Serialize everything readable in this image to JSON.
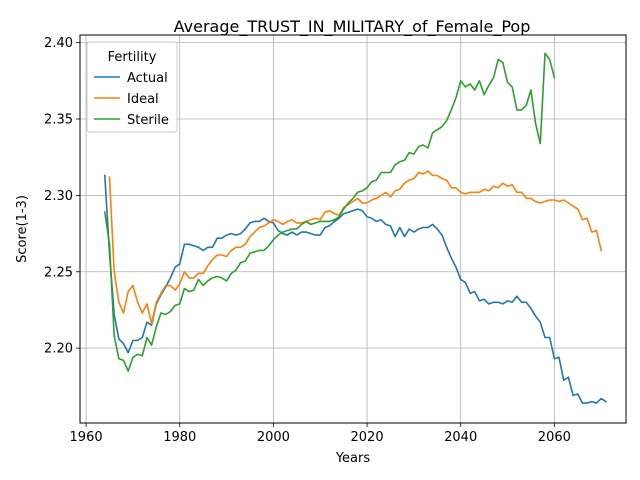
{
  "chart_data": {
    "type": "line",
    "title": "Average_TRUST_IN_MILITARY_of_Female_Pop",
    "xlabel": "Years",
    "ylabel": "Score(1-3)",
    "xlim": [
      1958.7,
      2075.3
    ],
    "ylim": [
      2.151,
      2.405
    ],
    "xticks": [
      "1960",
      "1980",
      "2000",
      "2020",
      "2040",
      "2060"
    ],
    "yticks": [
      "2.20",
      "2.25",
      "2.30",
      "2.35",
      "2.40"
    ],
    "grid": true,
    "legend": {
      "title": "Fertility",
      "placement": "upper-left"
    },
    "series": [
      {
        "name": "Actual",
        "color": "#1f77b4",
        "points": [
          [
            1964,
            2.313
          ],
          [
            1965,
            2.262
          ],
          [
            1966,
            2.222
          ],
          [
            1967,
            2.206
          ],
          [
            1968,
            2.203
          ],
          [
            1969,
            2.197
          ],
          [
            1970,
            2.205
          ],
          [
            1971,
            2.205
          ],
          [
            1972,
            2.207
          ],
          [
            1973,
            2.217
          ],
          [
            1974,
            2.215
          ],
          [
            1975,
            2.229
          ],
          [
            1976,
            2.235
          ],
          [
            1977,
            2.24
          ],
          [
            1978,
            2.246
          ],
          [
            1979,
            2.253
          ],
          [
            1980,
            2.255
          ],
          [
            1981,
            2.268
          ],
          [
            1982,
            2.268
          ],
          [
            1983,
            2.267
          ],
          [
            1984,
            2.266
          ],
          [
            1985,
            2.264
          ],
          [
            1986,
            2.266
          ],
          [
            1987,
            2.266
          ],
          [
            1988,
            2.272
          ],
          [
            1989,
            2.272
          ],
          [
            1990,
            2.274
          ],
          [
            1991,
            2.275
          ],
          [
            1992,
            2.274
          ],
          [
            1993,
            2.275
          ],
          [
            1994,
            2.278
          ],
          [
            1995,
            2.282
          ],
          [
            1996,
            2.283
          ],
          [
            1997,
            2.283
          ],
          [
            1998,
            2.285
          ],
          [
            1999,
            2.283
          ],
          [
            2000,
            2.282
          ],
          [
            2001,
            2.277
          ],
          [
            2002,
            2.275
          ],
          [
            2003,
            2.274
          ],
          [
            2004,
            2.276
          ],
          [
            2005,
            2.274
          ],
          [
            2006,
            2.276
          ],
          [
            2007,
            2.276
          ],
          [
            2008,
            2.275
          ],
          [
            2009,
            2.274
          ],
          [
            2010,
            2.274
          ],
          [
            2011,
            2.279
          ],
          [
            2012,
            2.28
          ],
          [
            2013,
            2.283
          ],
          [
            2014,
            2.285
          ],
          [
            2015,
            2.288
          ],
          [
            2016,
            2.289
          ],
          [
            2017,
            2.29
          ],
          [
            2018,
            2.291
          ],
          [
            2019,
            2.29
          ],
          [
            2020,
            2.286
          ],
          [
            2021,
            2.285
          ],
          [
            2022,
            2.283
          ],
          [
            2023,
            2.284
          ],
          [
            2024,
            2.281
          ],
          [
            2025,
            2.28
          ],
          [
            2026,
            2.273
          ],
          [
            2027,
            2.279
          ],
          [
            2028,
            2.273
          ],
          [
            2029,
            2.278
          ],
          [
            2030,
            2.276
          ],
          [
            2031,
            2.278
          ],
          [
            2032,
            2.279
          ],
          [
            2033,
            2.279
          ],
          [
            2034,
            2.281
          ],
          [
            2035,
            2.278
          ],
          [
            2036,
            2.274
          ],
          [
            2037,
            2.266
          ],
          [
            2038,
            2.259
          ],
          [
            2039,
            2.253
          ],
          [
            2040,
            2.245
          ],
          [
            2041,
            2.243
          ],
          [
            2042,
            2.236
          ],
          [
            2043,
            2.237
          ],
          [
            2044,
            2.231
          ],
          [
            2045,
            2.232
          ],
          [
            2046,
            2.229
          ],
          [
            2047,
            2.23
          ],
          [
            2048,
            2.23
          ],
          [
            2049,
            2.229
          ],
          [
            2050,
            2.231
          ],
          [
            2051,
            2.23
          ],
          [
            2052,
            2.234
          ],
          [
            2053,
            2.23
          ],
          [
            2054,
            2.23
          ],
          [
            2055,
            2.226
          ],
          [
            2056,
            2.221
          ],
          [
            2057,
            2.217
          ],
          [
            2058,
            2.207
          ],
          [
            2059,
            2.207
          ],
          [
            2060,
            2.193
          ],
          [
            2061,
            2.194
          ],
          [
            2062,
            2.179
          ],
          [
            2063,
            2.181
          ],
          [
            2064,
            2.169
          ],
          [
            2065,
            2.17
          ],
          [
            2066,
            2.164
          ],
          [
            2067,
            2.164
          ],
          [
            2068,
            2.165
          ],
          [
            2069,
            2.164
          ],
          [
            2070,
            2.167
          ],
          [
            2071,
            2.165
          ]
        ]
      },
      {
        "name": "Ideal",
        "color": "#ff7f0e",
        "points": [
          [
            1965,
            2.312
          ],
          [
            1966,
            2.25
          ],
          [
            1967,
            2.23
          ],
          [
            1968,
            2.223
          ],
          [
            1969,
            2.237
          ],
          [
            1970,
            2.241
          ],
          [
            1971,
            2.23
          ],
          [
            1972,
            2.223
          ],
          [
            1973,
            2.229
          ],
          [
            1974,
            2.216
          ],
          [
            1975,
            2.23
          ],
          [
            1976,
            2.236
          ],
          [
            1977,
            2.241
          ],
          [
            1978,
            2.241
          ],
          [
            1979,
            2.238
          ],
          [
            1980,
            2.242
          ],
          [
            1981,
            2.25
          ],
          [
            1982,
            2.246
          ],
          [
            1983,
            2.246
          ],
          [
            1984,
            2.249
          ],
          [
            1985,
            2.249
          ],
          [
            1986,
            2.254
          ],
          [
            1987,
            2.258
          ],
          [
            1988,
            2.261
          ],
          [
            1989,
            2.261
          ],
          [
            1990,
            2.26
          ],
          [
            1991,
            2.264
          ],
          [
            1992,
            2.266
          ],
          [
            1993,
            2.266
          ],
          [
            1994,
            2.268
          ],
          [
            1995,
            2.273
          ],
          [
            1996,
            2.276
          ],
          [
            1997,
            2.279
          ],
          [
            1998,
            2.28
          ],
          [
            1999,
            2.282
          ],
          [
            2000,
            2.284
          ],
          [
            2001,
            2.283
          ],
          [
            2002,
            2.281
          ],
          [
            2003,
            2.283
          ],
          [
            2004,
            2.284
          ],
          [
            2005,
            2.282
          ],
          [
            2006,
            2.282
          ],
          [
            2007,
            2.283
          ],
          [
            2008,
            2.284
          ],
          [
            2009,
            2.285
          ],
          [
            2010,
            2.284
          ],
          [
            2011,
            2.289
          ],
          [
            2012,
            2.29
          ],
          [
            2013,
            2.288
          ],
          [
            2014,
            2.287
          ],
          [
            2015,
            2.292
          ],
          [
            2016,
            2.294
          ],
          [
            2017,
            2.296
          ],
          [
            2018,
            2.298
          ],
          [
            2019,
            2.295
          ],
          [
            2020,
            2.295
          ],
          [
            2021,
            2.297
          ],
          [
            2022,
            2.298
          ],
          [
            2023,
            2.3
          ],
          [
            2024,
            2.302
          ],
          [
            2025,
            2.299
          ],
          [
            2026,
            2.303
          ],
          [
            2027,
            2.304
          ],
          [
            2028,
            2.308
          ],
          [
            2029,
            2.31
          ],
          [
            2030,
            2.311
          ],
          [
            2031,
            2.315
          ],
          [
            2032,
            2.314
          ],
          [
            2033,
            2.316
          ],
          [
            2034,
            2.313
          ],
          [
            2035,
            2.313
          ],
          [
            2036,
            2.311
          ],
          [
            2037,
            2.31
          ],
          [
            2038,
            2.305
          ],
          [
            2039,
            2.305
          ],
          [
            2040,
            2.302
          ],
          [
            2041,
            2.301
          ],
          [
            2042,
            2.302
          ],
          [
            2043,
            2.302
          ],
          [
            2044,
            2.302
          ],
          [
            2045,
            2.304
          ],
          [
            2046,
            2.303
          ],
          [
            2047,
            2.306
          ],
          [
            2048,
            2.305
          ],
          [
            2049,
            2.308
          ],
          [
            2050,
            2.306
          ],
          [
            2051,
            2.307
          ],
          [
            2052,
            2.302
          ],
          [
            2053,
            2.302
          ],
          [
            2054,
            2.298
          ],
          [
            2055,
            2.298
          ],
          [
            2056,
            2.296
          ],
          [
            2057,
            2.295
          ],
          [
            2058,
            2.296
          ],
          [
            2059,
            2.297
          ],
          [
            2060,
            2.297
          ],
          [
            2061,
            2.296
          ],
          [
            2062,
            2.297
          ],
          [
            2063,
            2.295
          ],
          [
            2064,
            2.293
          ],
          [
            2065,
            2.291
          ],
          [
            2066,
            2.284
          ],
          [
            2067,
            2.285
          ],
          [
            2068,
            2.276
          ],
          [
            2069,
            2.277
          ],
          [
            2070,
            2.264
          ]
        ]
      },
      {
        "name": "Sterile",
        "color": "#2ca02c",
        "points": [
          [
            1964,
            2.289
          ],
          [
            1965,
            2.268
          ],
          [
            1966,
            2.208
          ],
          [
            1967,
            2.193
          ],
          [
            1968,
            2.192
          ],
          [
            1969,
            2.185
          ],
          [
            1970,
            2.194
          ],
          [
            1971,
            2.196
          ],
          [
            1972,
            2.195
          ],
          [
            1973,
            2.207
          ],
          [
            1974,
            2.202
          ],
          [
            1975,
            2.214
          ],
          [
            1976,
            2.223
          ],
          [
            1977,
            2.222
          ],
          [
            1978,
            2.224
          ],
          [
            1979,
            2.228
          ],
          [
            1980,
            2.229
          ],
          [
            1981,
            2.239
          ],
          [
            1982,
            2.237
          ],
          [
            1983,
            2.238
          ],
          [
            1984,
            2.245
          ],
          [
            1985,
            2.241
          ],
          [
            1986,
            2.244
          ],
          [
            1987,
            2.246
          ],
          [
            1988,
            2.247
          ],
          [
            1989,
            2.246
          ],
          [
            1990,
            2.244
          ],
          [
            1991,
            2.249
          ],
          [
            1992,
            2.251
          ],
          [
            1993,
            2.256
          ],
          [
            1994,
            2.257
          ],
          [
            1995,
            2.262
          ],
          [
            1996,
            2.263
          ],
          [
            1997,
            2.264
          ],
          [
            1998,
            2.264
          ],
          [
            1999,
            2.267
          ],
          [
            2000,
            2.271
          ],
          [
            2001,
            2.274
          ],
          [
            2002,
            2.276
          ],
          [
            2003,
            2.277
          ],
          [
            2004,
            2.278
          ],
          [
            2005,
            2.278
          ],
          [
            2006,
            2.281
          ],
          [
            2007,
            2.283
          ],
          [
            2008,
            2.281
          ],
          [
            2009,
            2.282
          ],
          [
            2010,
            2.283
          ],
          [
            2011,
            2.283
          ],
          [
            2012,
            2.283
          ],
          [
            2013,
            2.284
          ],
          [
            2014,
            2.286
          ],
          [
            2015,
            2.291
          ],
          [
            2016,
            2.295
          ],
          [
            2017,
            2.298
          ],
          [
            2018,
            2.302
          ],
          [
            2019,
            2.303
          ],
          [
            2020,
            2.305
          ],
          [
            2021,
            2.309
          ],
          [
            2022,
            2.31
          ],
          [
            2023,
            2.315
          ],
          [
            2024,
            2.315
          ],
          [
            2025,
            2.315
          ],
          [
            2026,
            2.32
          ],
          [
            2027,
            2.322
          ],
          [
            2028,
            2.323
          ],
          [
            2029,
            2.328
          ],
          [
            2030,
            2.327
          ],
          [
            2031,
            2.332
          ],
          [
            2032,
            2.333
          ],
          [
            2033,
            2.331
          ],
          [
            2034,
            2.341
          ],
          [
            2035,
            2.343
          ],
          [
            2036,
            2.345
          ],
          [
            2037,
            2.349
          ],
          [
            2038,
            2.356
          ],
          [
            2039,
            2.364
          ],
          [
            2040,
            2.375
          ],
          [
            2041,
            2.371
          ],
          [
            2042,
            2.373
          ],
          [
            2043,
            2.369
          ],
          [
            2044,
            2.375
          ],
          [
            2045,
            2.366
          ],
          [
            2046,
            2.372
          ],
          [
            2047,
            2.377
          ],
          [
            2048,
            2.389
          ],
          [
            2049,
            2.387
          ],
          [
            2050,
            2.374
          ],
          [
            2051,
            2.371
          ],
          [
            2052,
            2.356
          ],
          [
            2053,
            2.356
          ],
          [
            2054,
            2.359
          ],
          [
            2055,
            2.369
          ],
          [
            2056,
            2.347
          ],
          [
            2057,
            2.334
          ],
          [
            2058,
            2.393
          ],
          [
            2059,
            2.389
          ],
          [
            2060,
            2.377
          ]
        ]
      }
    ]
  }
}
